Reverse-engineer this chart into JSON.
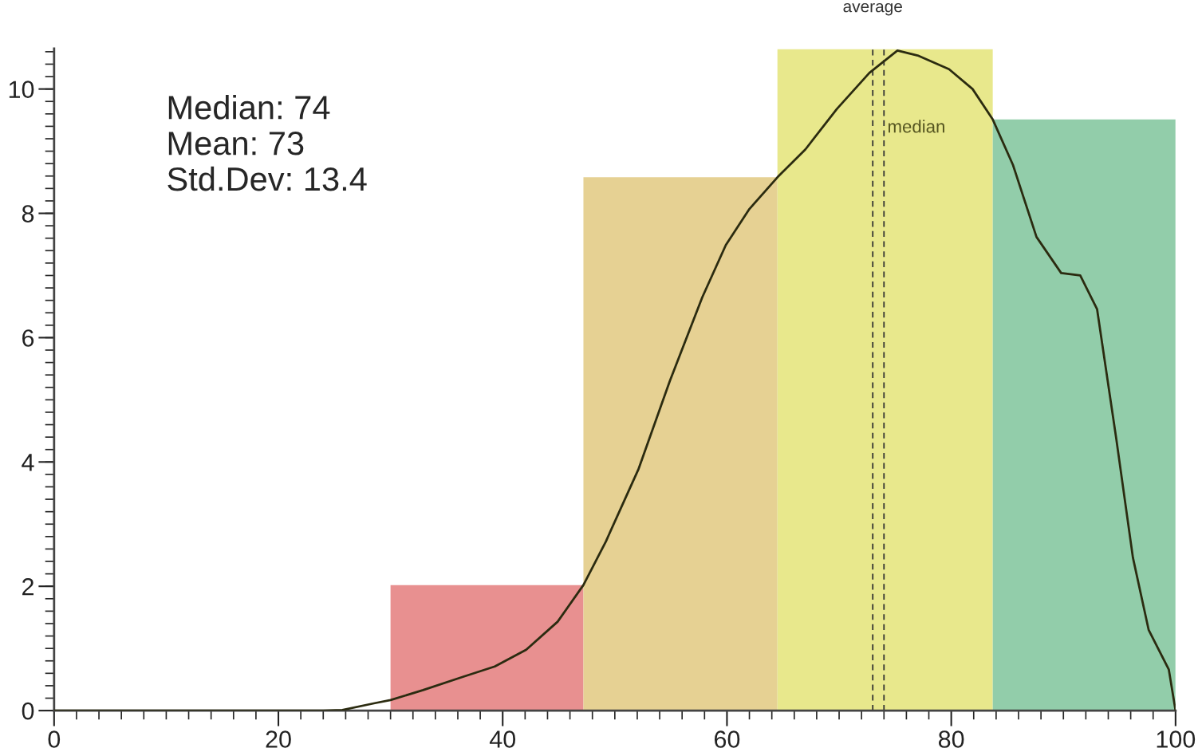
{
  "chart_data": {
    "type": "histogram",
    "bins": [
      30,
      47.2,
      64.5,
      83.7,
      100
    ],
    "values": [
      2.02,
      8.58,
      10.64,
      9.51
    ],
    "colors": [
      "#e89090",
      "#e6d193",
      "#e8e88c",
      "#92cdaa"
    ],
    "series": [
      {
        "type": "line",
        "color": "#2b2b10",
        "x": [
          0,
          10,
          20,
          24,
          25.7,
          28.6,
          30,
          32.9,
          36.4,
          39.3,
          42.1,
          44.9,
          47.2,
          49.2,
          52.1,
          54.9,
          57.8,
          59.9,
          62,
          64.5,
          67,
          69.8,
          72.7,
          75.2,
          77,
          79.8,
          81.9,
          83.7,
          85.5,
          87.6,
          89.8,
          91.5,
          93,
          94.7,
          96.2,
          97.6,
          99.4,
          100
        ],
        "values": [
          0,
          0,
          0,
          0,
          0.01,
          0.12,
          0.17,
          0.33,
          0.54,
          0.71,
          0.98,
          1.43,
          2.02,
          2.72,
          3.88,
          5.3,
          6.65,
          7.49,
          8.07,
          8.58,
          9.03,
          9.68,
          10.26,
          10.62,
          10.54,
          10.32,
          10.0,
          9.51,
          8.78,
          7.62,
          7.04,
          7.0,
          6.46,
          4.39,
          2.46,
          1.3,
          0.66,
          0
        ]
      }
    ],
    "ref_lines": [
      {
        "axis": "x",
        "value": 73,
        "label": "average",
        "line_style": "dashed",
        "color": "#333333"
      },
      {
        "axis": "x",
        "value": 74,
        "label": "median",
        "line_style": "dashed",
        "color": "#333333"
      }
    ],
    "annotations": [
      "Median: 74\nMean: 73\nStd.Dev: 13.4"
    ],
    "xlim": [
      0,
      100
    ],
    "xticks": [
      0,
      20,
      40,
      60,
      80,
      100
    ],
    "ylim": [
      0,
      10.65
    ],
    "yticks": [
      0,
      2,
      4,
      6,
      8,
      10
    ],
    "grid": false,
    "legend": false
  }
}
